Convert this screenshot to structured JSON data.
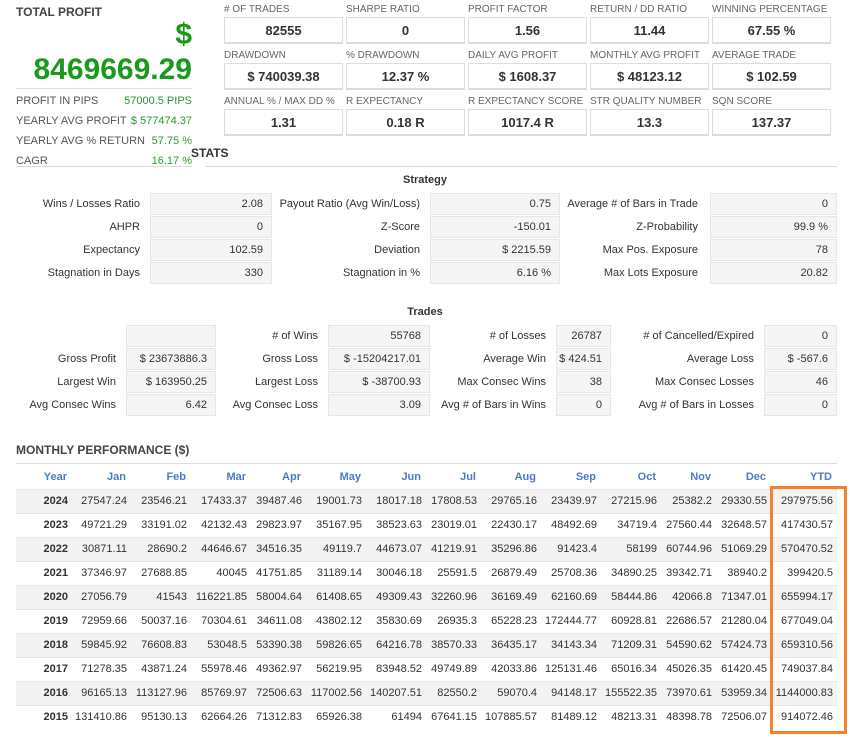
{
  "total_profit": {
    "label": "TOTAL PROFIT",
    "currency": "$",
    "value": "8469669.29"
  },
  "summary": [
    {
      "label": "PROFIT IN PIPS",
      "value": "57000.5 PIPS"
    },
    {
      "label": "YEARLY AVG PROFIT",
      "value": "$ 577474.37"
    },
    {
      "label": "YEARLY AVG % RETURN",
      "value": "57.75 %"
    },
    {
      "label": "CAGR",
      "value": "16.17 %"
    }
  ],
  "metrics": [
    {
      "label": "# OF TRADES",
      "value": "82555"
    },
    {
      "label": "SHARPE RATIO",
      "value": "0"
    },
    {
      "label": "PROFIT FACTOR",
      "value": "1.56"
    },
    {
      "label": "RETURN / DD RATIO",
      "value": "11.44"
    },
    {
      "label": "WINNING PERCENTAGE",
      "value": "67.55 %"
    },
    {
      "label": "DRAWDOWN",
      "value": "$ 740039.38"
    },
    {
      "label": "% DRAWDOWN",
      "value": "12.37 %"
    },
    {
      "label": "DAILY AVG PROFIT",
      "value": "$ 1608.37"
    },
    {
      "label": "MONTHLY AVG PROFIT",
      "value": "$ 48123.12"
    },
    {
      "label": "AVERAGE TRADE",
      "value": "$ 102.59"
    },
    {
      "label": "ANNUAL % / MAX DD %",
      "value": "1.31"
    },
    {
      "label": "R EXPECTANCY",
      "value": "0.18 R"
    },
    {
      "label": "R EXPECTANCY SCORE",
      "value": "1017.4 R"
    },
    {
      "label": "STR QUALITY NUMBER",
      "value": "13.3"
    },
    {
      "label": "SQN SCORE",
      "value": "137.37"
    }
  ],
  "stats_title": "STATS",
  "strategy": {
    "title": "Strategy",
    "rows": [
      [
        {
          "label": "Wins / Losses Ratio",
          "value": "2.08"
        },
        {
          "label": "Payout Ratio (Avg Win/Loss)",
          "value": "0.75"
        },
        {
          "label": "Average # of Bars in Trade",
          "value": "0"
        }
      ],
      [
        {
          "label": "AHPR",
          "value": "0"
        },
        {
          "label": "Z-Score",
          "value": "-150.01"
        },
        {
          "label": "Z-Probability",
          "value": "99.9 %"
        }
      ],
      [
        {
          "label": "Expectancy",
          "value": "102.59"
        },
        {
          "label": "Deviation",
          "value": "$ 2215.59"
        },
        {
          "label": "Max Pos. Exposure",
          "value": "78"
        }
      ],
      [
        {
          "label": "Stagnation in Days",
          "value": "330"
        },
        {
          "label": "Stagnation in %",
          "value": "6.16 %"
        },
        {
          "label": "Max Lots Exposure",
          "value": "20.82"
        }
      ]
    ]
  },
  "trades": {
    "title": "Trades",
    "rows": [
      [
        {
          "label": "",
          "value": ""
        },
        {
          "label": "# of Wins",
          "value": "55768"
        },
        {
          "label": "# of Losses",
          "value": "26787"
        },
        {
          "label": "# of Cancelled/Expired",
          "value": "0"
        }
      ],
      [
        {
          "label": "Gross Profit",
          "value": "$ 23673886.3"
        },
        {
          "label": "Gross Loss",
          "value": "$ -15204217.01"
        },
        {
          "label": "Average Win",
          "value": "$ 424.51"
        },
        {
          "label": "Average Loss",
          "value": "$ -567.6"
        }
      ],
      [
        {
          "label": "Largest Win",
          "value": "$ 163950.25"
        },
        {
          "label": "Largest Loss",
          "value": "$ -38700.93"
        },
        {
          "label": "Max Consec Wins",
          "value": "38"
        },
        {
          "label": "Max Consec Losses",
          "value": "46"
        }
      ],
      [
        {
          "label": "Avg Consec Wins",
          "value": "6.42"
        },
        {
          "label": "Avg Consec Loss",
          "value": "3.09"
        },
        {
          "label": "Avg # of Bars in Wins",
          "value": "0"
        },
        {
          "label": "Avg # of Bars in Losses",
          "value": "0"
        }
      ]
    ]
  },
  "monthly": {
    "title": "MONTHLY PERFORMANCE ($)",
    "highlight_color": "#f5822a",
    "headers": [
      "Year",
      "Jan",
      "Feb",
      "Mar",
      "Apr",
      "May",
      "Jun",
      "Jul",
      "Aug",
      "Sep",
      "Oct",
      "Nov",
      "Dec",
      "YTD"
    ],
    "rows": [
      [
        "2024",
        "27547.24",
        "23546.21",
        "17433.37",
        "39487.46",
        "19001.73",
        "18017.18",
        "17808.53",
        "29765.16",
        "23439.97",
        "27215.96",
        "25382.2",
        "29330.55",
        "297975.56"
      ],
      [
        "2023",
        "49721.29",
        "33191.02",
        "42132.43",
        "29823.97",
        "35167.95",
        "38523.63",
        "23019.01",
        "22430.17",
        "48492.69",
        "34719.4",
        "27560.44",
        "32648.57",
        "417430.57"
      ],
      [
        "2022",
        "30871.11",
        "28690.2",
        "44646.67",
        "34516.35",
        "49119.7",
        "44673.07",
        "41219.91",
        "35296.86",
        "91423.4",
        "58199",
        "60744.96",
        "51069.29",
        "570470.52"
      ],
      [
        "2021",
        "37346.97",
        "27688.85",
        "40045",
        "41751.85",
        "31189.14",
        "30046.18",
        "25591.5",
        "26879.49",
        "25708.36",
        "34890.25",
        "39342.71",
        "38940.2",
        "399420.5"
      ],
      [
        "2020",
        "27056.79",
        "41543",
        "116221.85",
        "58004.64",
        "61408.65",
        "49309.43",
        "32260.96",
        "36169.49",
        "62160.69",
        "58444.86",
        "42066.8",
        "71347.01",
        "655994.17"
      ],
      [
        "2019",
        "72959.66",
        "50037.16",
        "70304.61",
        "34611.08",
        "43802.12",
        "35830.69",
        "26935.3",
        "65228.23",
        "172444.77",
        "60928.81",
        "22686.57",
        "21280.04",
        "677049.04"
      ],
      [
        "2018",
        "59845.92",
        "76608.83",
        "53048.5",
        "53390.38",
        "59826.65",
        "64216.78",
        "38570.33",
        "36435.17",
        "34143.34",
        "71209.31",
        "54590.62",
        "57424.73",
        "659310.56"
      ],
      [
        "2017",
        "71278.35",
        "43871.24",
        "55978.46",
        "49362.97",
        "56219.95",
        "83948.52",
        "49749.89",
        "42033.86",
        "125131.46",
        "65016.34",
        "45026.35",
        "61420.45",
        "749037.84"
      ],
      [
        "2016",
        "96165.13",
        "113127.96",
        "85769.97",
        "72506.63",
        "117002.56",
        "140207.51",
        "82550.2",
        "59070.4",
        "94148.17",
        "155522.35",
        "73970.61",
        "53959.34",
        "1144000.83"
      ],
      [
        "2015",
        "131410.86",
        "95130.13",
        "62664.26",
        "71312.83",
        "65926.38",
        "61494",
        "67641.15",
        "107885.57",
        "81489.12",
        "48213.31",
        "48398.78",
        "72506.07",
        "914072.46"
      ]
    ]
  }
}
